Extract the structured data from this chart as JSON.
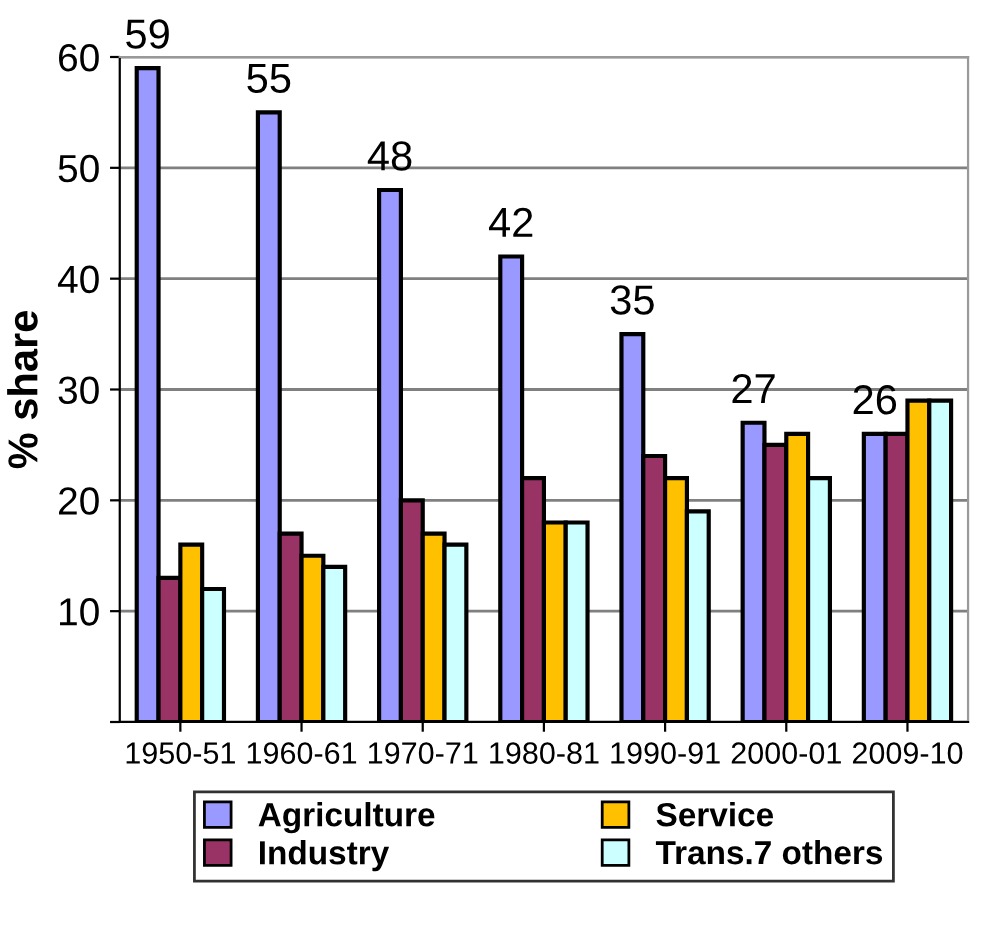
{
  "chart_data": {
    "type": "bar",
    "ylabel": "% share",
    "categories": [
      "1950-51",
      "1960-61",
      "1970-71",
      "1980-81",
      "1990-91",
      "2000-01",
      "2009-10"
    ],
    "series": [
      {
        "name": "Agriculture",
        "color": "#9999ff",
        "values": [
          59,
          55,
          48,
          42,
          35,
          27,
          26
        ],
        "value_labels": [
          "59",
          "55",
          "48",
          "42",
          "35",
          "27",
          "26"
        ]
      },
      {
        "name": "Industry",
        "color": "#993366",
        "values": [
          13,
          17,
          20,
          22,
          24,
          25,
          26
        ]
      },
      {
        "name": "Service",
        "color": "#ffc000",
        "values": [
          16,
          15,
          17,
          18,
          22,
          26,
          29
        ]
      },
      {
        "name": "Trans.7 others",
        "color": "#ccffff",
        "values": [
          12,
          14,
          16,
          18,
          19,
          22,
          29
        ]
      }
    ],
    "ylim": [
      0,
      60
    ],
    "yticks": [
      {
        "value": 0,
        "label": null
      },
      10,
      20,
      30,
      40,
      50,
      60
    ],
    "grid": "y",
    "legend": "bottom"
  }
}
